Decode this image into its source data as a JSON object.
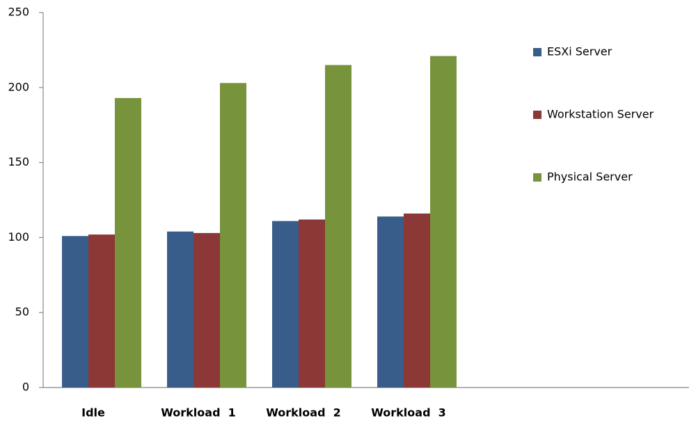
{
  "chart_data": {
    "type": "bar",
    "categories": [
      "Idle",
      "Workload  1",
      "Workload  2",
      "Workload  3"
    ],
    "series": [
      {
        "name": "ESXi Server",
        "color": "#385d8a",
        "values": [
          101,
          104,
          111,
          114
        ]
      },
      {
        "name": "Workstation Server",
        "color": "#8c3836",
        "values": [
          102,
          103,
          112,
          116
        ]
      },
      {
        "name": "Physical Server",
        "color": "#77933c",
        "values": [
          193,
          203,
          215,
          221
        ]
      }
    ],
    "ylim": [
      0,
      250
    ],
    "yticks": [
      0,
      50,
      100,
      150,
      200,
      250
    ],
    "grid": false,
    "legend": "right"
  }
}
